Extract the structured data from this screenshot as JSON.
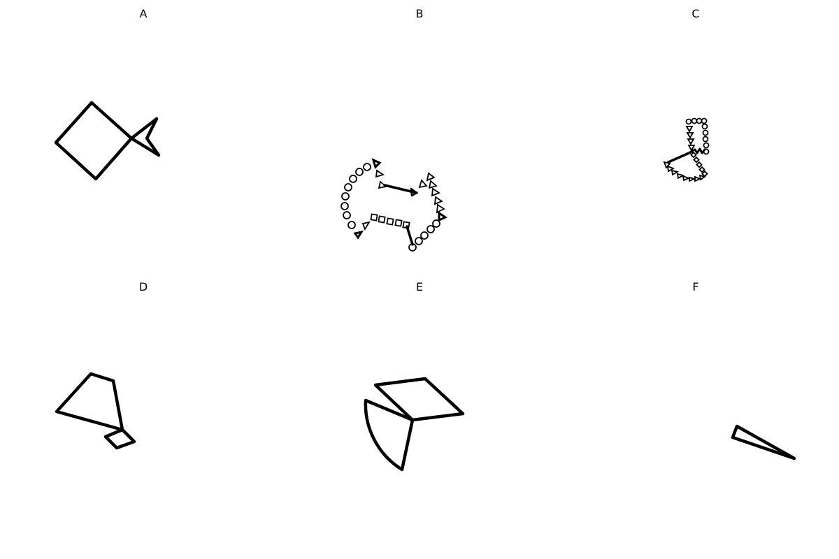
{
  "panels": {
    "a": {
      "label": "A"
    },
    "b": {
      "label": "B"
    },
    "c": {
      "label": "C"
    },
    "d": {
      "label": "D"
    },
    "e": {
      "label": "E"
    },
    "f": {
      "label": "F"
    }
  },
  "colors": {
    "ink": "#000000",
    "background": "#ffffff"
  }
}
